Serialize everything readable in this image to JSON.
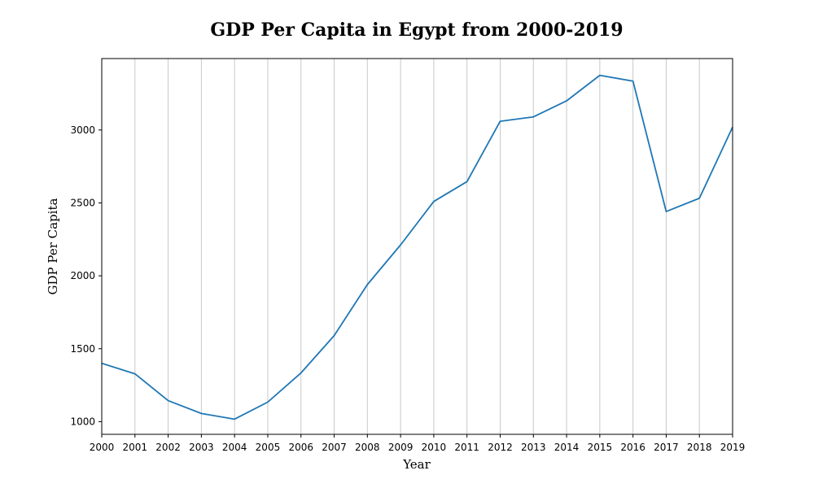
{
  "chart_data": {
    "type": "line",
    "title": "GDP Per Capita in Egypt from 2000-2019",
    "xlabel": "Year",
    "ylabel": "GDP Per Capita",
    "x": [
      2000,
      2001,
      2002,
      2003,
      2004,
      2005,
      2006,
      2007,
      2008,
      2009,
      2010,
      2011,
      2012,
      2013,
      2014,
      2015,
      2016,
      2017,
      2018,
      2019
    ],
    "series": [
      {
        "values": [
          1400,
          1328,
          1144,
          1056,
          1017,
          1134,
          1334,
          1590,
          1940,
          2212,
          2510,
          2646,
          3060,
          3090,
          3200,
          3375,
          3335,
          2441,
          2532,
          3020
        ],
        "color": "#1f77b4"
      }
    ],
    "xlim": [
      2000,
      2019
    ],
    "ylim": [
      913,
      3490
    ],
    "xticks": [
      "2000",
      "2001",
      "2002",
      "2003",
      "2004",
      "2005",
      "2006",
      "2007",
      "2008",
      "2009",
      "2010",
      "2011",
      "2012",
      "2013",
      "2014",
      "2015",
      "2016",
      "2017",
      "2018",
      "2019"
    ],
    "yticks": [
      1000,
      1500,
      2000,
      2500,
      3000
    ],
    "grid": "vertical"
  }
}
